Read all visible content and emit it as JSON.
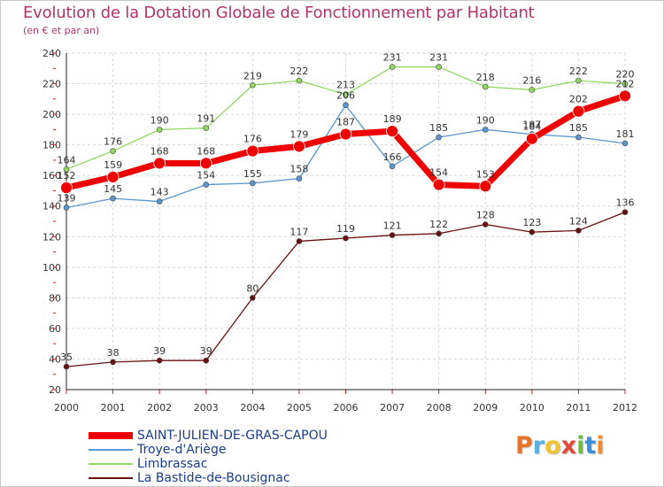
{
  "header": {
    "title": "Evolution de la Dotation Globale de Fonctionnement par Habitant",
    "subtitle": "(en € et par an)"
  },
  "logo": {
    "text": "Proxiti",
    "colors": [
      "#e8742a",
      "#5ab0e0",
      "#f2c230",
      "#e04a3a",
      "#6cbf3a",
      "#3a8fd8",
      "#f08a2a"
    ]
  },
  "chart_data": {
    "type": "line",
    "title": "Evolution de la Dotation Globale de Fonctionnement par Habitant",
    "subtitle": "(en € et par an)",
    "xlabel": "",
    "ylabel": "",
    "ylim": [
      20,
      240
    ],
    "yticks": [
      20,
      40,
      60,
      80,
      100,
      120,
      140,
      160,
      180,
      200,
      220,
      240
    ],
    "grid": true,
    "legend_position": "bottom-left",
    "x": [
      "2000",
      "2001",
      "2002",
      "2003",
      "2004",
      "2005",
      "2006",
      "2007",
      "2008",
      "2009",
      "2010",
      "2011",
      "2012"
    ],
    "series": [
      {
        "name": "SAINT-JULIEN-DE-GRAS-CAPOU",
        "color": "#ee0000",
        "values": [
          152,
          159,
          168,
          168,
          176,
          179,
          187,
          189,
          154,
          153,
          184,
          202,
          212
        ]
      },
      {
        "name": "Troye-d'Ariège",
        "color": "#5a96cf",
        "values": [
          139,
          145,
          143,
          154,
          155,
          158,
          206,
          166,
          185,
          190,
          187,
          185,
          181
        ]
      },
      {
        "name": "Limbrassac",
        "color": "#90d860",
        "values": [
          164,
          176,
          190,
          191,
          219,
          222,
          213,
          231,
          231,
          218,
          216,
          222,
          220
        ]
      },
      {
        "name": "La Bastide-de-Bousignac",
        "color": "#6a1010",
        "values": [
          35,
          38,
          39,
          39,
          80,
          117,
          119,
          121,
          122,
          128,
          123,
          124,
          136
        ]
      }
    ]
  }
}
